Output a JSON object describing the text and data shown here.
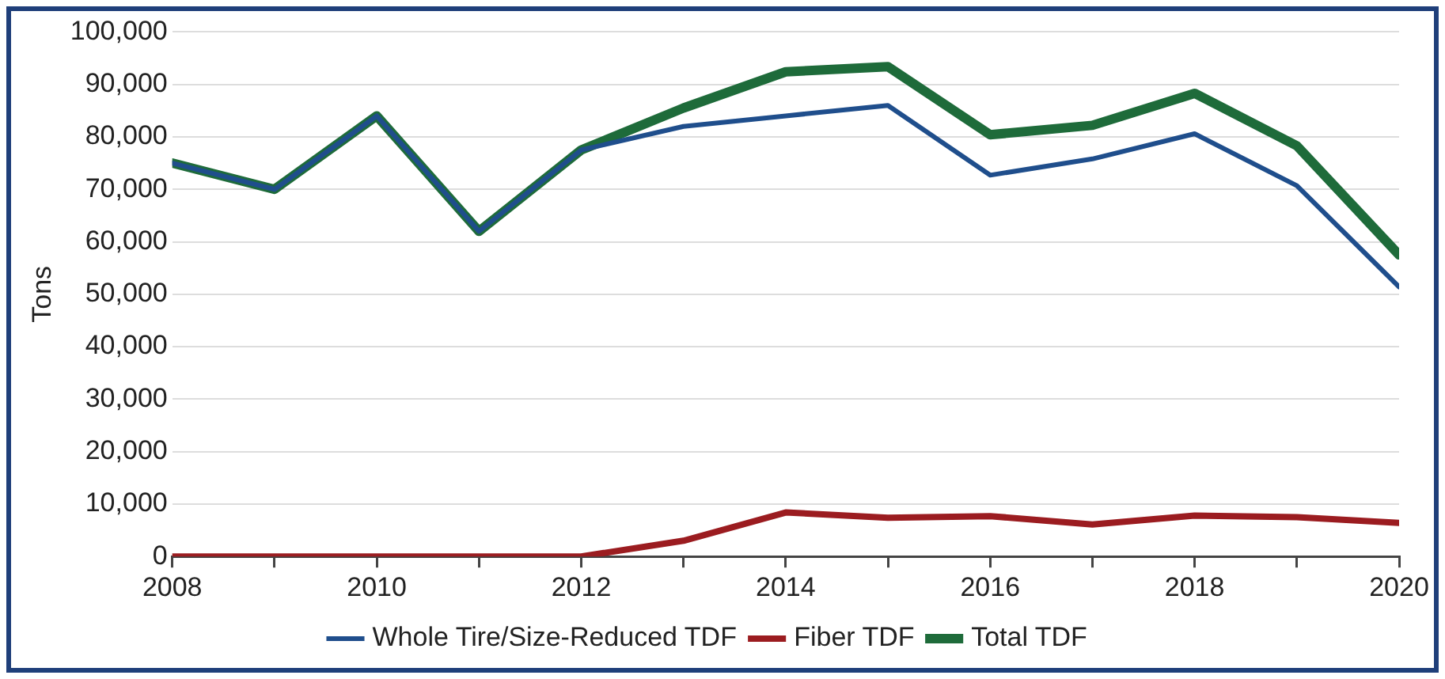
{
  "chart_data": {
    "type": "line",
    "ylabel": "Tons",
    "x": [
      2008,
      2009,
      2010,
      2011,
      2012,
      2013,
      2014,
      2015,
      2016,
      2017,
      2018,
      2019,
      2020
    ],
    "series": [
      {
        "name": "Whole Tire/Size-Reduced TDF",
        "color": "#1f4e8c",
        "values": [
          75000,
          70000,
          84000,
          62000,
          77500,
          82000,
          84000,
          86000,
          72700,
          75800,
          80600,
          70700,
          51400
        ]
      },
      {
        "name": "Fiber TDF",
        "color": "#9b1c20",
        "values": [
          0,
          0,
          0,
          0,
          0,
          3000,
          8400,
          7400,
          7700,
          6100,
          7800,
          7500,
          6400
        ]
      },
      {
        "name": "Total TDF",
        "color": "#1e6b3a",
        "values": [
          75000,
          70000,
          84000,
          62000,
          77500,
          85500,
          92400,
          93400,
          80400,
          82200,
          88300,
          78300,
          57500
        ]
      }
    ],
    "xlim": [
      2008,
      2020
    ],
    "xticks": [
      {
        "value": 2008,
        "label": "2008"
      },
      {
        "value": 2009,
        "label": null
      },
      {
        "value": 2010,
        "label": "2010"
      },
      {
        "value": 2011,
        "label": null
      },
      {
        "value": 2012,
        "label": "2012"
      },
      {
        "value": 2013,
        "label": null
      },
      {
        "value": 2014,
        "label": "2014"
      },
      {
        "value": 2015,
        "label": null
      },
      {
        "value": 2016,
        "label": "2016"
      },
      {
        "value": 2017,
        "label": null
      },
      {
        "value": 2018,
        "label": "2018"
      },
      {
        "value": 2019,
        "label": null
      },
      {
        "value": 2020,
        "label": "2020"
      }
    ],
    "ylim": [
      0,
      100000
    ],
    "yticks": [
      0,
      {
        "value": 10000,
        "label": "10,000"
      },
      {
        "value": 20000,
        "label": "20,000"
      },
      {
        "value": 30000,
        "label": "30,000"
      },
      {
        "value": 40000,
        "label": "40,000"
      },
      {
        "value": 50000,
        "label": "50,000"
      },
      {
        "value": 60000,
        "label": "60,000"
      },
      {
        "value": 70000,
        "label": "70,000"
      },
      {
        "value": 80000,
        "label": "80,000"
      },
      {
        "value": 90000,
        "label": "90,000"
      },
      {
        "value": 100000,
        "label": "100,000"
      }
    ],
    "grid": "y",
    "legend": "bottom",
    "marker": "none",
    "line_style": "solid"
  }
}
